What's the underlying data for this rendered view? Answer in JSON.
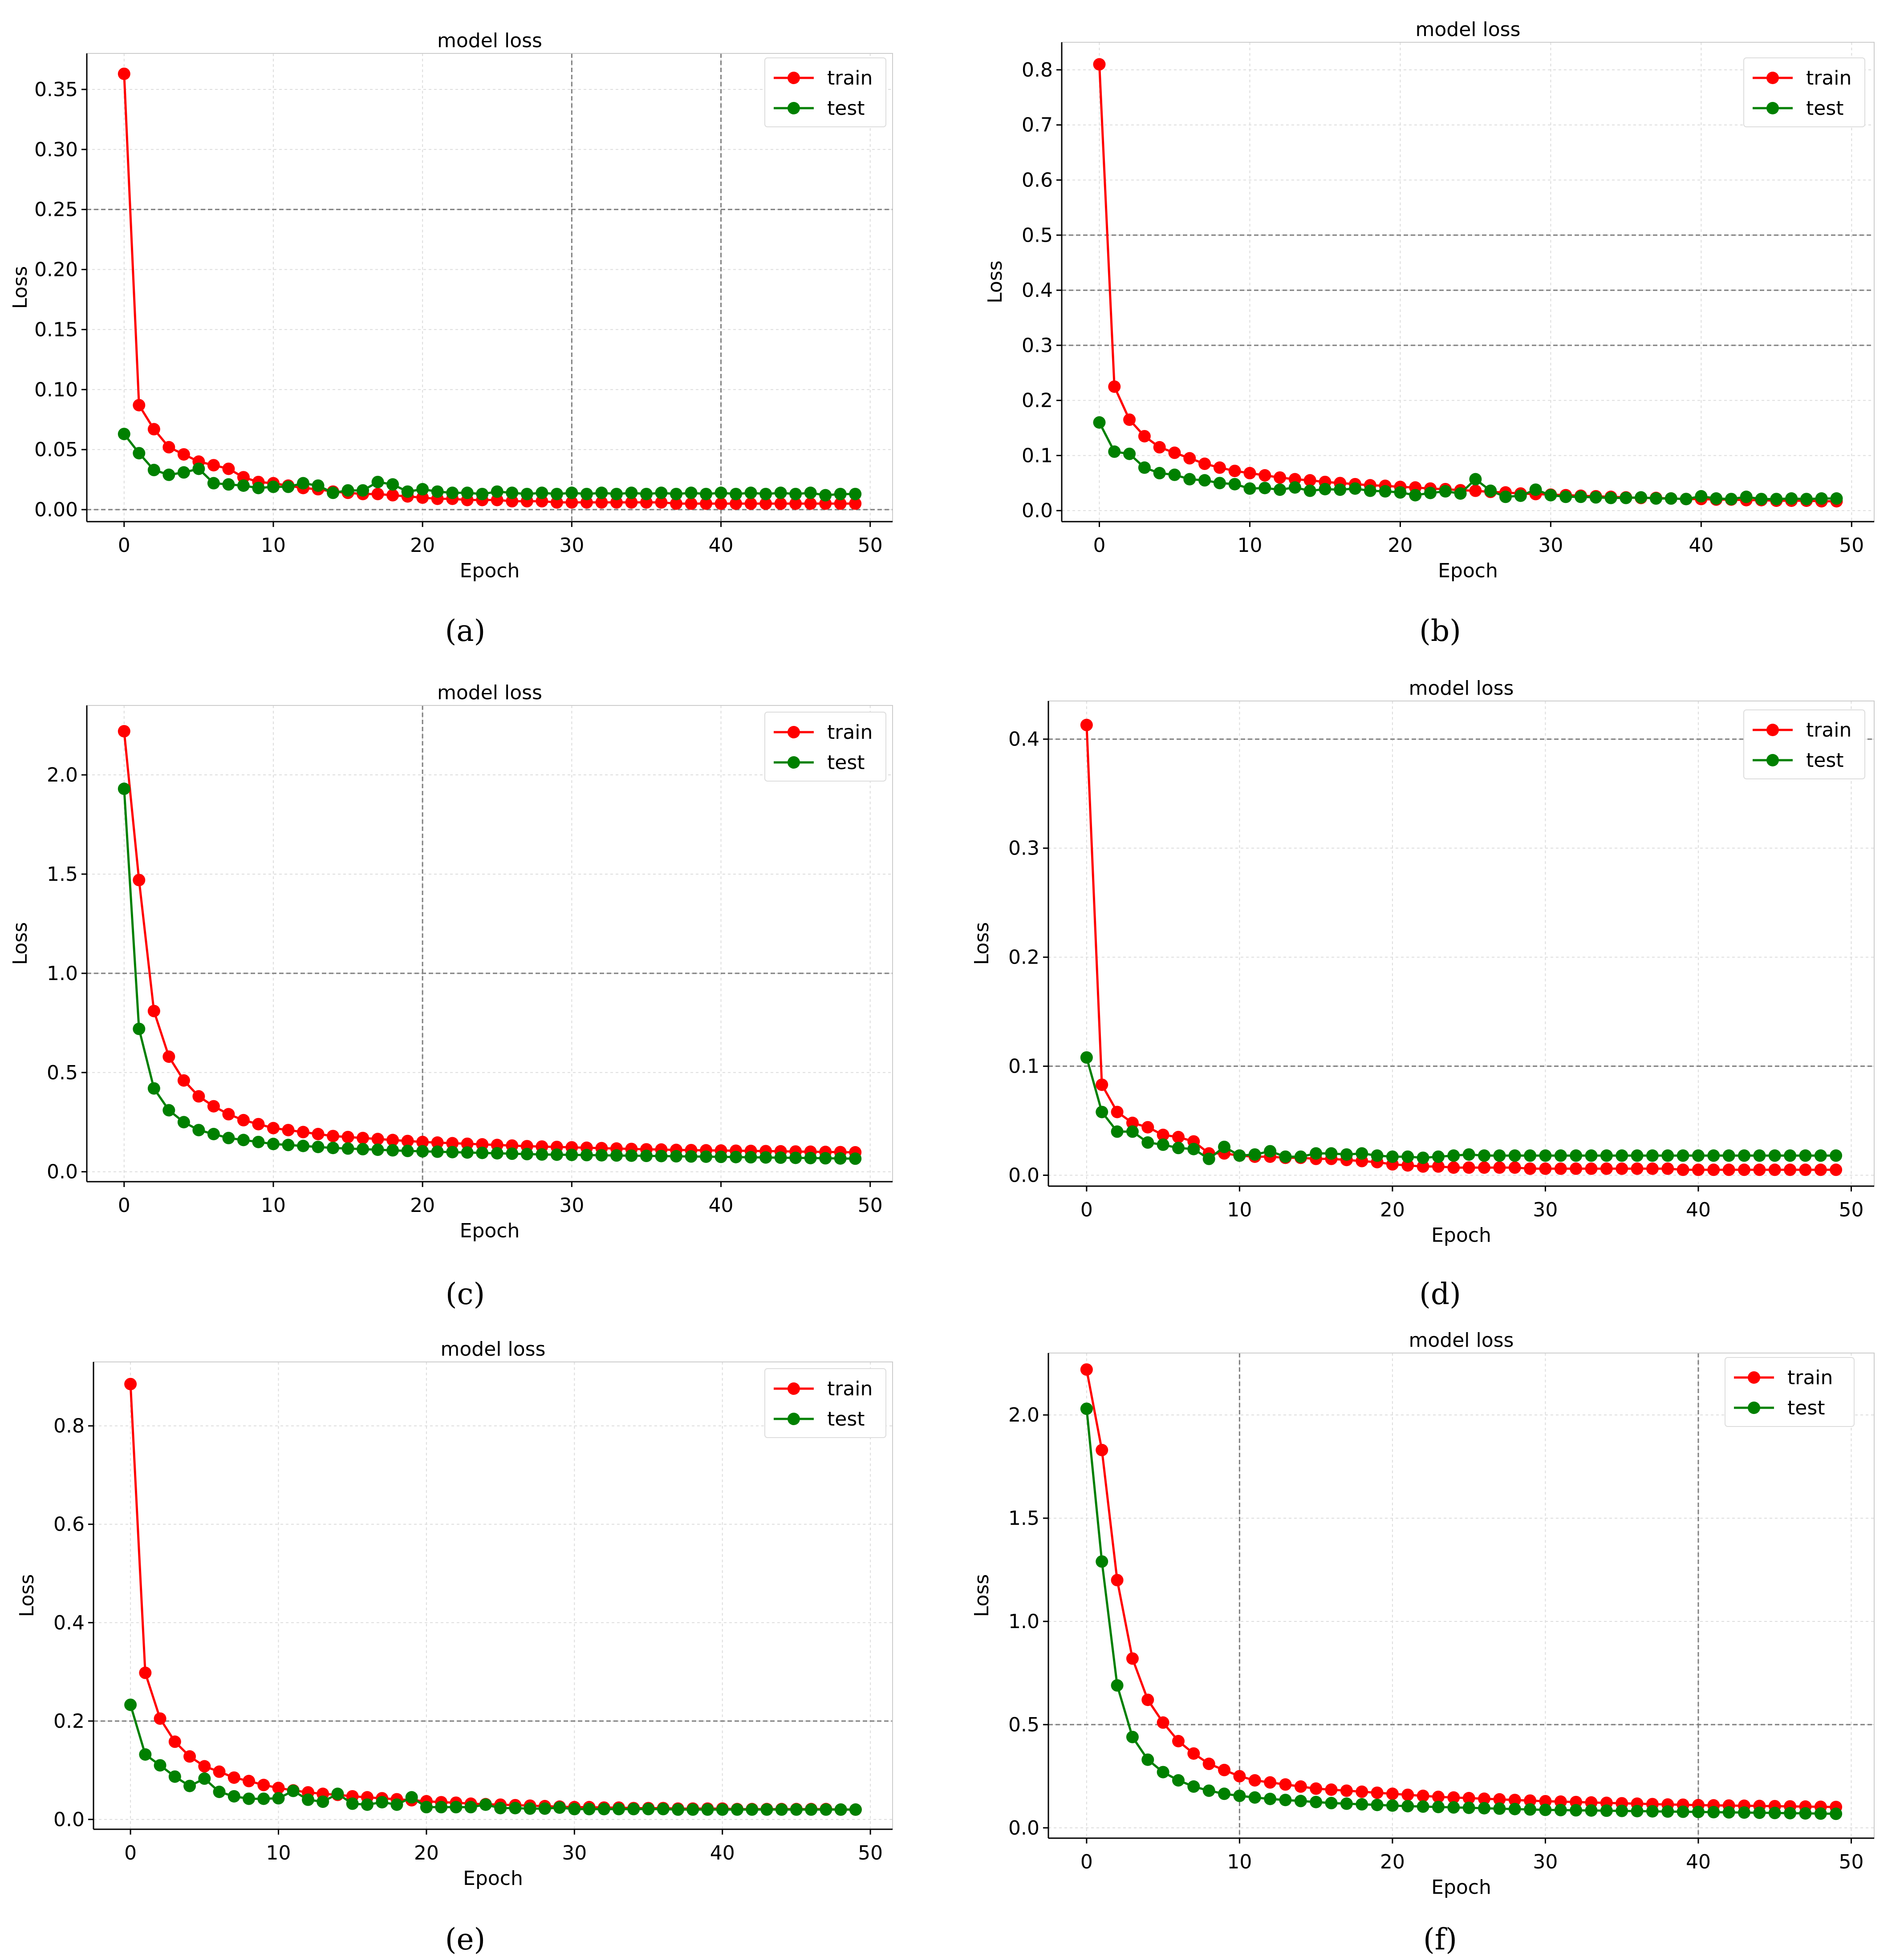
{
  "figure": {
    "captions": [
      "(a)",
      "(b)",
      "(c)",
      "(d)",
      "(e)",
      "(f)"
    ]
  },
  "colors": {
    "train": "#ff0000",
    "test": "#008000",
    "axis": "#000000",
    "grid": "#b0b0b0",
    "background": "#ffffff"
  },
  "chart_data": [
    {
      "panel": "a",
      "type": "line",
      "title": "model loss",
      "xlabel": "Epoch",
      "ylabel": "Loss",
      "xlim": [
        -2.5,
        51.5
      ],
      "ylim": [
        -0.01,
        0.38
      ],
      "xticks": [
        0,
        10,
        20,
        30,
        40,
        50
      ],
      "xtick_labels": [
        "0",
        "10",
        "20",
        "30",
        "40",
        "50"
      ],
      "yticks": [
        0.0,
        0.05,
        0.1,
        0.15,
        0.2,
        0.25,
        0.3,
        0.35
      ],
      "ytick_labels": [
        "0.00",
        "0.05",
        "0.10",
        "0.15",
        "0.20",
        "0.25",
        "0.30",
        "0.35"
      ],
      "dark_hgrid": [
        0.0,
        0.25
      ],
      "dark_vgrid": [
        30,
        40
      ],
      "legend": {
        "position": "top-right",
        "entries": [
          "train",
          "test"
        ]
      },
      "series": [
        {
          "name": "train",
          "color": "#ff0000",
          "values": [
            0.363,
            0.087,
            0.067,
            0.052,
            0.046,
            0.04,
            0.037,
            0.034,
            0.027,
            0.023,
            0.022,
            0.02,
            0.018,
            0.017,
            0.015,
            0.014,
            0.013,
            0.013,
            0.012,
            0.011,
            0.01,
            0.009,
            0.009,
            0.008,
            0.008,
            0.008,
            0.007,
            0.007,
            0.007,
            0.006,
            0.006,
            0.006,
            0.006,
            0.006,
            0.006,
            0.006,
            0.006,
            0.005,
            0.005,
            0.005,
            0.005,
            0.005,
            0.005,
            0.005,
            0.005,
            0.005,
            0.005,
            0.005,
            0.005,
            0.005
          ]
        },
        {
          "name": "test",
          "color": "#008000",
          "values": [
            0.063,
            0.047,
            0.033,
            0.029,
            0.031,
            0.034,
            0.022,
            0.021,
            0.02,
            0.018,
            0.019,
            0.019,
            0.022,
            0.02,
            0.014,
            0.016,
            0.016,
            0.023,
            0.021,
            0.015,
            0.017,
            0.015,
            0.014,
            0.014,
            0.013,
            0.015,
            0.014,
            0.013,
            0.014,
            0.013,
            0.014,
            0.013,
            0.014,
            0.013,
            0.014,
            0.013,
            0.014,
            0.013,
            0.014,
            0.013,
            0.014,
            0.013,
            0.014,
            0.013,
            0.014,
            0.013,
            0.014,
            0.012,
            0.013,
            0.013
          ]
        }
      ]
    },
    {
      "panel": "b",
      "type": "line",
      "title": "model loss",
      "xlabel": "Epoch",
      "ylabel": "Loss",
      "xlim": [
        -2.5,
        51.5
      ],
      "ylim": [
        -0.02,
        0.85
      ],
      "xticks": [
        0,
        10,
        20,
        30,
        40,
        50
      ],
      "xtick_labels": [
        "0",
        "10",
        "20",
        "30",
        "40",
        "50"
      ],
      "yticks": [
        0.0,
        0.1,
        0.2,
        0.3,
        0.4,
        0.5,
        0.6,
        0.7,
        0.8
      ],
      "ytick_labels": [
        "0.0",
        "0.1",
        "0.2",
        "0.3",
        "0.4",
        "0.5",
        "0.6",
        "0.7",
        "0.8"
      ],
      "dark_hgrid": [
        0.3,
        0.4,
        0.5
      ],
      "dark_vgrid": [],
      "legend": {
        "position": "top-right",
        "entries": [
          "train",
          "test"
        ]
      },
      "series": [
        {
          "name": "train",
          "color": "#ff0000",
          "values": [
            0.81,
            0.225,
            0.165,
            0.135,
            0.115,
            0.105,
            0.095,
            0.085,
            0.078,
            0.072,
            0.068,
            0.064,
            0.06,
            0.057,
            0.055,
            0.052,
            0.05,
            0.048,
            0.046,
            0.045,
            0.043,
            0.042,
            0.04,
            0.039,
            0.037,
            0.036,
            0.034,
            0.033,
            0.031,
            0.03,
            0.029,
            0.028,
            0.027,
            0.026,
            0.025,
            0.024,
            0.023,
            0.023,
            0.022,
            0.021,
            0.021,
            0.02,
            0.02,
            0.019,
            0.019,
            0.018,
            0.018,
            0.018,
            0.017,
            0.017
          ]
        },
        {
          "name": "test",
          "color": "#008000",
          "values": [
            0.16,
            0.107,
            0.103,
            0.078,
            0.068,
            0.065,
            0.057,
            0.055,
            0.05,
            0.048,
            0.04,
            0.041,
            0.038,
            0.042,
            0.036,
            0.039,
            0.038,
            0.04,
            0.036,
            0.035,
            0.033,
            0.028,
            0.032,
            0.035,
            0.031,
            0.057,
            0.036,
            0.025,
            0.027,
            0.038,
            0.028,
            0.025,
            0.025,
            0.024,
            0.023,
            0.023,
            0.024,
            0.022,
            0.022,
            0.021,
            0.026,
            0.022,
            0.021,
            0.025,
            0.021,
            0.021,
            0.022,
            0.021,
            0.022,
            0.022
          ]
        }
      ]
    },
    {
      "panel": "c",
      "type": "line",
      "title": "model loss",
      "xlabel": "Epoch",
      "ylabel": "Loss",
      "xlim": [
        -2.5,
        51.5
      ],
      "ylim": [
        -0.05,
        2.35
      ],
      "xticks": [
        0,
        10,
        20,
        30,
        40,
        50
      ],
      "xtick_labels": [
        "0",
        "10",
        "20",
        "30",
        "40",
        "50"
      ],
      "yticks": [
        0.0,
        0.5,
        1.0,
        1.5,
        2.0
      ],
      "ytick_labels": [
        "0.0",
        "0.5",
        "1.0",
        "1.5",
        "2.0"
      ],
      "dark_hgrid": [
        1.0
      ],
      "dark_vgrid": [
        20
      ],
      "legend": {
        "position": "top-right",
        "entries": [
          "train",
          "test"
        ]
      },
      "series": [
        {
          "name": "train",
          "color": "#ff0000",
          "values": [
            2.22,
            1.47,
            0.81,
            0.58,
            0.46,
            0.38,
            0.33,
            0.29,
            0.26,
            0.24,
            0.22,
            0.21,
            0.2,
            0.19,
            0.18,
            0.175,
            0.17,
            0.165,
            0.16,
            0.155,
            0.15,
            0.147,
            0.144,
            0.141,
            0.138,
            0.135,
            0.132,
            0.129,
            0.127,
            0.125,
            0.123,
            0.121,
            0.119,
            0.117,
            0.115,
            0.113,
            0.112,
            0.11,
            0.109,
            0.108,
            0.107,
            0.106,
            0.105,
            0.104,
            0.103,
            0.102,
            0.101,
            0.1,
            0.099,
            0.098
          ]
        },
        {
          "name": "test",
          "color": "#008000",
          "values": [
            1.93,
            0.72,
            0.42,
            0.31,
            0.25,
            0.21,
            0.19,
            0.17,
            0.16,
            0.15,
            0.14,
            0.135,
            0.13,
            0.125,
            0.12,
            0.117,
            0.114,
            0.111,
            0.108,
            0.105,
            0.103,
            0.101,
            0.099,
            0.097,
            0.095,
            0.093,
            0.091,
            0.089,
            0.087,
            0.086,
            0.085,
            0.084,
            0.083,
            0.082,
            0.081,
            0.08,
            0.079,
            0.078,
            0.077,
            0.076,
            0.075,
            0.074,
            0.073,
            0.072,
            0.071,
            0.07,
            0.069,
            0.068,
            0.067,
            0.066
          ]
        }
      ]
    },
    {
      "panel": "d",
      "type": "line",
      "title": "model loss",
      "xlabel": "Epoch",
      "ylabel": "Loss",
      "xlim": [
        -2.5,
        51.5
      ],
      "ylim": [
        -0.01,
        0.435
      ],
      "xticks": [
        0,
        10,
        20,
        30,
        40,
        50
      ],
      "xtick_labels": [
        "0",
        "10",
        "20",
        "30",
        "40",
        "50"
      ],
      "yticks": [
        0.0,
        0.1,
        0.2,
        0.3,
        0.4
      ],
      "ytick_labels": [
        "0.0",
        "0.1",
        "0.2",
        "0.3",
        "0.4"
      ],
      "dark_hgrid": [
        0.1,
        0.4
      ],
      "dark_vgrid": [],
      "legend": {
        "position": "top-right",
        "entries": [
          "train",
          "test"
        ]
      },
      "series": [
        {
          "name": "train",
          "color": "#ff0000",
          "values": [
            0.413,
            0.083,
            0.058,
            0.048,
            0.044,
            0.037,
            0.035,
            0.031,
            0.02,
            0.02,
            0.018,
            0.017,
            0.017,
            0.016,
            0.016,
            0.015,
            0.015,
            0.014,
            0.013,
            0.012,
            0.01,
            0.009,
            0.008,
            0.008,
            0.007,
            0.007,
            0.007,
            0.007,
            0.007,
            0.006,
            0.006,
            0.006,
            0.006,
            0.006,
            0.006,
            0.006,
            0.006,
            0.006,
            0.006,
            0.005,
            0.005,
            0.005,
            0.005,
            0.005,
            0.005,
            0.005,
            0.005,
            0.005,
            0.005,
            0.005
          ]
        },
        {
          "name": "test",
          "color": "#008000",
          "values": [
            0.108,
            0.058,
            0.04,
            0.04,
            0.03,
            0.028,
            0.025,
            0.024,
            0.015,
            0.026,
            0.018,
            0.019,
            0.022,
            0.017,
            0.017,
            0.02,
            0.02,
            0.019,
            0.02,
            0.018,
            0.017,
            0.017,
            0.016,
            0.017,
            0.018,
            0.019,
            0.018,
            0.018,
            0.018,
            0.018,
            0.018,
            0.018,
            0.018,
            0.018,
            0.018,
            0.018,
            0.018,
            0.018,
            0.018,
            0.018,
            0.018,
            0.018,
            0.018,
            0.018,
            0.018,
            0.018,
            0.018,
            0.018,
            0.018,
            0.018
          ]
        }
      ]
    },
    {
      "panel": "e",
      "type": "line",
      "title": "model loss",
      "xlabel": "Epoch",
      "ylabel": "Loss",
      "xlim": [
        -2.5,
        51.5
      ],
      "ylim": [
        -0.02,
        0.93
      ],
      "xticks": [
        0,
        10,
        20,
        30,
        40,
        50
      ],
      "xtick_labels": [
        "0",
        "10",
        "20",
        "30",
        "40",
        "50"
      ],
      "yticks": [
        0.0,
        0.2,
        0.4,
        0.6,
        0.8
      ],
      "ytick_labels": [
        "0.0",
        "0.2",
        "0.4",
        "0.6",
        "0.8"
      ],
      "dark_hgrid": [
        0.2
      ],
      "dark_vgrid": [],
      "legend": {
        "position": "top-right",
        "entries": [
          "train",
          "test"
        ]
      },
      "series": [
        {
          "name": "train",
          "color": "#ff0000",
          "values": [
            0.885,
            0.298,
            0.205,
            0.158,
            0.128,
            0.108,
            0.097,
            0.085,
            0.078,
            0.07,
            0.064,
            0.059,
            0.055,
            0.052,
            0.05,
            0.047,
            0.045,
            0.043,
            0.041,
            0.039,
            0.037,
            0.035,
            0.034,
            0.032,
            0.031,
            0.03,
            0.029,
            0.028,
            0.027,
            0.026,
            0.025,
            0.025,
            0.024,
            0.024,
            0.023,
            0.023,
            0.023,
            0.022,
            0.022,
            0.022,
            0.022,
            0.021,
            0.021,
            0.021,
            0.021,
            0.021,
            0.021,
            0.021,
            0.02,
            0.02
          ]
        },
        {
          "name": "test",
          "color": "#008000",
          "values": [
            0.233,
            0.132,
            0.11,
            0.087,
            0.068,
            0.083,
            0.056,
            0.047,
            0.042,
            0.042,
            0.043,
            0.058,
            0.04,
            0.036,
            0.052,
            0.032,
            0.03,
            0.035,
            0.03,
            0.045,
            0.025,
            0.025,
            0.025,
            0.025,
            0.03,
            0.023,
            0.023,
            0.022,
            0.022,
            0.024,
            0.021,
            0.021,
            0.021,
            0.021,
            0.021,
            0.021,
            0.021,
            0.02,
            0.02,
            0.02,
            0.02,
            0.02,
            0.02,
            0.02,
            0.02,
            0.02,
            0.02,
            0.02,
            0.02,
            0.02
          ]
        }
      ]
    },
    {
      "panel": "f",
      "type": "line",
      "title": "model loss",
      "xlabel": "Epoch",
      "ylabel": "Loss",
      "xlim": [
        -2.5,
        51.5
      ],
      "ylim": [
        -0.05,
        2.3
      ],
      "xticks": [
        0,
        10,
        20,
        30,
        40,
        50
      ],
      "xtick_labels": [
        "0",
        "10",
        "20",
        "30",
        "40",
        "50"
      ],
      "yticks": [
        0.0,
        0.5,
        1.0,
        1.5,
        2.0
      ],
      "ytick_labels": [
        "0.0",
        "0.5",
        "1.0",
        "1.5",
        "2.0"
      ],
      "dark_hgrid": [
        0.5
      ],
      "dark_vgrid": [
        10,
        40
      ],
      "legend": {
        "position": "top-right",
        "entries": [
          "train",
          "test"
        ]
      },
      "series": [
        {
          "name": "train",
          "color": "#ff0000",
          "values": [
            2.22,
            1.83,
            1.2,
            0.82,
            0.62,
            0.51,
            0.42,
            0.36,
            0.31,
            0.28,
            0.25,
            0.23,
            0.22,
            0.21,
            0.2,
            0.19,
            0.185,
            0.18,
            0.175,
            0.17,
            0.165,
            0.16,
            0.155,
            0.15,
            0.147,
            0.144,
            0.141,
            0.138,
            0.135,
            0.132,
            0.129,
            0.127,
            0.125,
            0.123,
            0.121,
            0.119,
            0.117,
            0.115,
            0.113,
            0.112,
            0.11,
            0.109,
            0.108,
            0.107,
            0.106,
            0.105,
            0.104,
            0.103,
            0.102,
            0.101
          ]
        },
        {
          "name": "test",
          "color": "#008000",
          "values": [
            2.03,
            1.29,
            0.69,
            0.44,
            0.33,
            0.27,
            0.23,
            0.2,
            0.18,
            0.165,
            0.155,
            0.147,
            0.14,
            0.135,
            0.13,
            0.125,
            0.12,
            0.117,
            0.114,
            0.111,
            0.108,
            0.105,
            0.103,
            0.101,
            0.099,
            0.097,
            0.095,
            0.093,
            0.091,
            0.089,
            0.087,
            0.086,
            0.085,
            0.084,
            0.083,
            0.082,
            0.081,
            0.08,
            0.079,
            0.078,
            0.077,
            0.076,
            0.075,
            0.074,
            0.073,
            0.072,
            0.071,
            0.07,
            0.069,
            0.068
          ]
        }
      ]
    }
  ]
}
